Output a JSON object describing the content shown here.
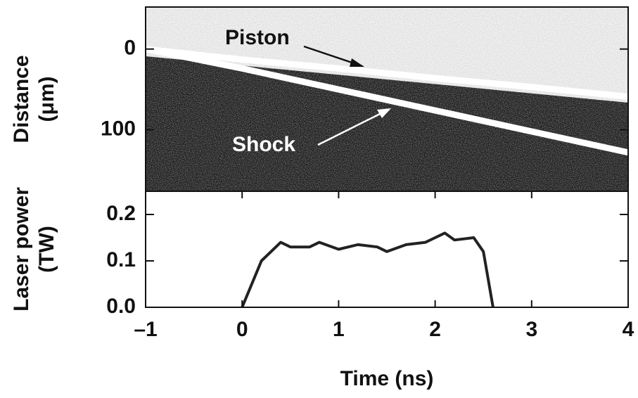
{
  "chart_data": [
    {
      "type": "line",
      "ylabel": [
        "Distance",
        "(μm)"
      ],
      "x": [
        -1,
        0,
        1,
        2,
        3,
        4
      ],
      "xlim": [
        -1,
        4
      ],
      "ylim": [
        176,
        -52
      ],
      "yticks": [
        0,
        100
      ],
      "series": [
        {
          "name": "Piston",
          "color": "#ffffff",
          "values": [
            0,
            13,
            24,
            36,
            47,
            59
          ]
        },
        {
          "name": "Shock",
          "color": "#ffffff",
          "values": [
            0,
            24,
            50,
            76,
            102,
            128
          ]
        }
      ]
    },
    {
      "type": "line",
      "ylabel": [
        "Laser power",
        "(TW)"
      ],
      "xlabel": "Time (ns)",
      "x": [
        0,
        0.1,
        0.2,
        0.3,
        0.4,
        0.5,
        0.7,
        0.8,
        1.0,
        1.2,
        1.4,
        1.5,
        1.7,
        1.9,
        2.0,
        2.1,
        2.2,
        2.4,
        2.5,
        2.55,
        2.6
      ],
      "values": [
        0,
        0.05,
        0.1,
        0.12,
        0.14,
        0.13,
        0.13,
        0.14,
        0.125,
        0.135,
        0.13,
        0.12,
        0.135,
        0.14,
        0.15,
        0.16,
        0.145,
        0.15,
        0.12,
        0.06,
        0
      ],
      "color": "#222222",
      "xlim": [
        -1,
        4
      ],
      "xticks": [
        {
          "value": -1,
          "label": "–1"
        },
        0,
        1,
        2,
        3,
        4
      ],
      "ylim": [
        0,
        0.25
      ],
      "yticks": [
        {
          "value": 0,
          "label": "0.0"
        },
        0.1,
        0.2
      ]
    }
  ]
}
